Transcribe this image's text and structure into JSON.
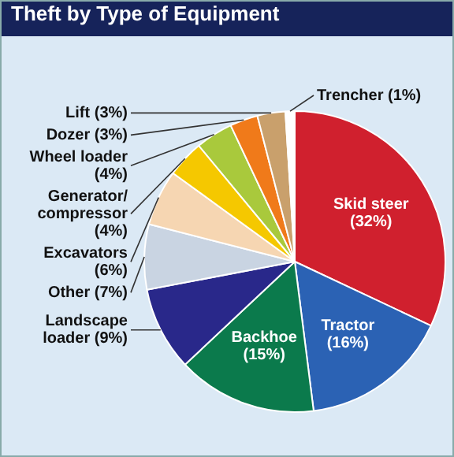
{
  "chart_data": {
    "type": "pie",
    "title": "Theft by Type of Equipment",
    "categories": [
      "Skid steer",
      "Tractor",
      "Backhoe",
      "Landscape loader",
      "Other",
      "Excavators",
      "Generator/compressor",
      "Wheel loader",
      "Dozer",
      "Lift",
      "Trencher"
    ],
    "values": [
      32,
      16,
      15,
      9,
      7,
      6,
      4,
      4,
      3,
      3,
      1
    ],
    "colors": [
      "#d0202e",
      "#2b62b4",
      "#0b7a4c",
      "#29288a",
      "#c9d4e2",
      "#f6d6b2",
      "#f5c800",
      "#a9c93c",
      "#f07a1a",
      "#c9a06c",
      "#ffffff"
    ],
    "value_labels": [
      "(32%)",
      "(16%)",
      "(15%)",
      "(9%)",
      "(7%)",
      "(6%)",
      "(4%)",
      "(4%)",
      "(3%)",
      "(3%)",
      "(1%)"
    ]
  }
}
